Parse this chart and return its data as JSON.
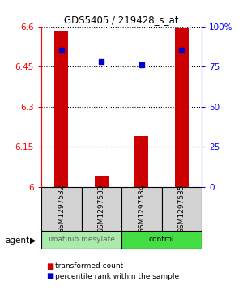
{
  "title": "GDS5405 / 219428_s_at",
  "samples": [
    "GSM1297532",
    "GSM1297533",
    "GSM1297534",
    "GSM1297535"
  ],
  "red_values": [
    6.585,
    6.04,
    6.19,
    6.592
  ],
  "blue_values": [
    6.51,
    6.47,
    6.455,
    6.51
  ],
  "ylim_left": [
    6.0,
    6.6
  ],
  "ylim_right": [
    0,
    100
  ],
  "yticks_left": [
    6.0,
    6.15,
    6.3,
    6.45,
    6.6
  ],
  "ytick_labels_left": [
    "6",
    "6.15",
    "6.3",
    "6.45",
    "6.6"
  ],
  "yticks_right": [
    0,
    25,
    50,
    75,
    100
  ],
  "ytick_labels_right": [
    "0",
    "25",
    "50",
    "75",
    "100%"
  ],
  "groups": [
    {
      "label": "imatinib mesylate",
      "samples": [
        0,
        1
      ],
      "color": "#AAEAAA"
    },
    {
      "label": "control",
      "samples": [
        2,
        3
      ],
      "color": "#44DD44"
    }
  ],
  "agent_label": "agent",
  "legend_red": "transformed count",
  "legend_blue": "percentile rank within the sample",
  "bar_width": 0.35,
  "red_color": "#CC0000",
  "blue_color": "#0000CC",
  "bar_bottom": 6.0,
  "main_axes": [
    0.17,
    0.365,
    0.66,
    0.545
  ],
  "label_axes": [
    0.17,
    0.215,
    0.66,
    0.15
  ],
  "group_axes": [
    0.17,
    0.155,
    0.66,
    0.06
  ]
}
